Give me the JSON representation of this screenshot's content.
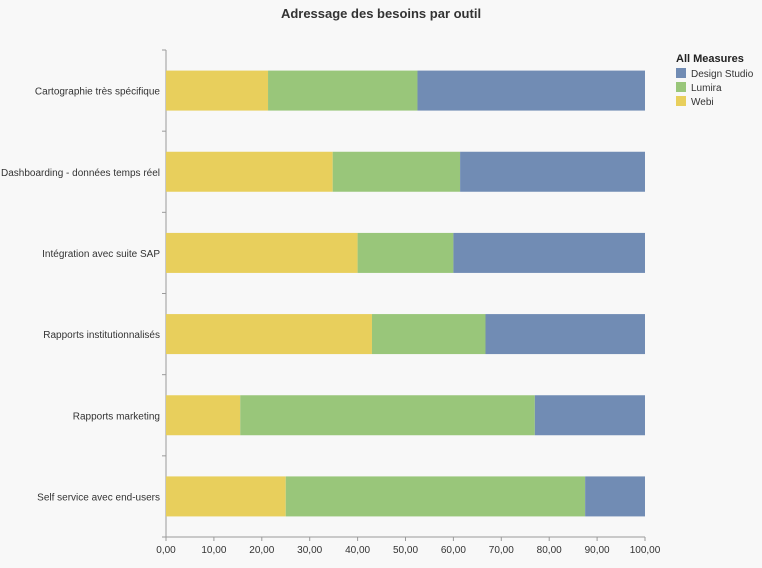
{
  "chart_data": {
    "type": "bar",
    "orientation": "horizontal",
    "stacked": true,
    "title": "Adressage des besoins par outil",
    "categories": [
      "Cartographie très spécifique",
      "Dashboarding - données temps réel",
      "Intégration avec suite SAP",
      "Rapports institutionnalisés",
      "Rapports marketing",
      "Self service avec end-users"
    ],
    "series": [
      {
        "name": "Webi",
        "color": "#e8cf5c",
        "values": [
          21.3,
          34.8,
          40.0,
          43.0,
          15.5,
          25.0
        ]
      },
      {
        "name": "Lumira",
        "color": "#99c67a",
        "values": [
          31.2,
          26.6,
          20.0,
          23.7,
          61.5,
          62.5
        ]
      },
      {
        "name": "Design Studio",
        "color": "#718cb4",
        "values": [
          47.5,
          38.6,
          40.0,
          33.3,
          23.0,
          12.5
        ]
      }
    ],
    "xlim": [
      0,
      100
    ],
    "x_ticks": [
      "0,00",
      "10,00",
      "20,00",
      "30,00",
      "40,00",
      "50,00",
      "60,00",
      "70,00",
      "80,00",
      "90,00",
      "100,00"
    ],
    "grid": false,
    "legend": {
      "title": "All Measures",
      "position": "top-right",
      "order": [
        "Design Studio",
        "Lumira",
        "Webi"
      ]
    }
  }
}
